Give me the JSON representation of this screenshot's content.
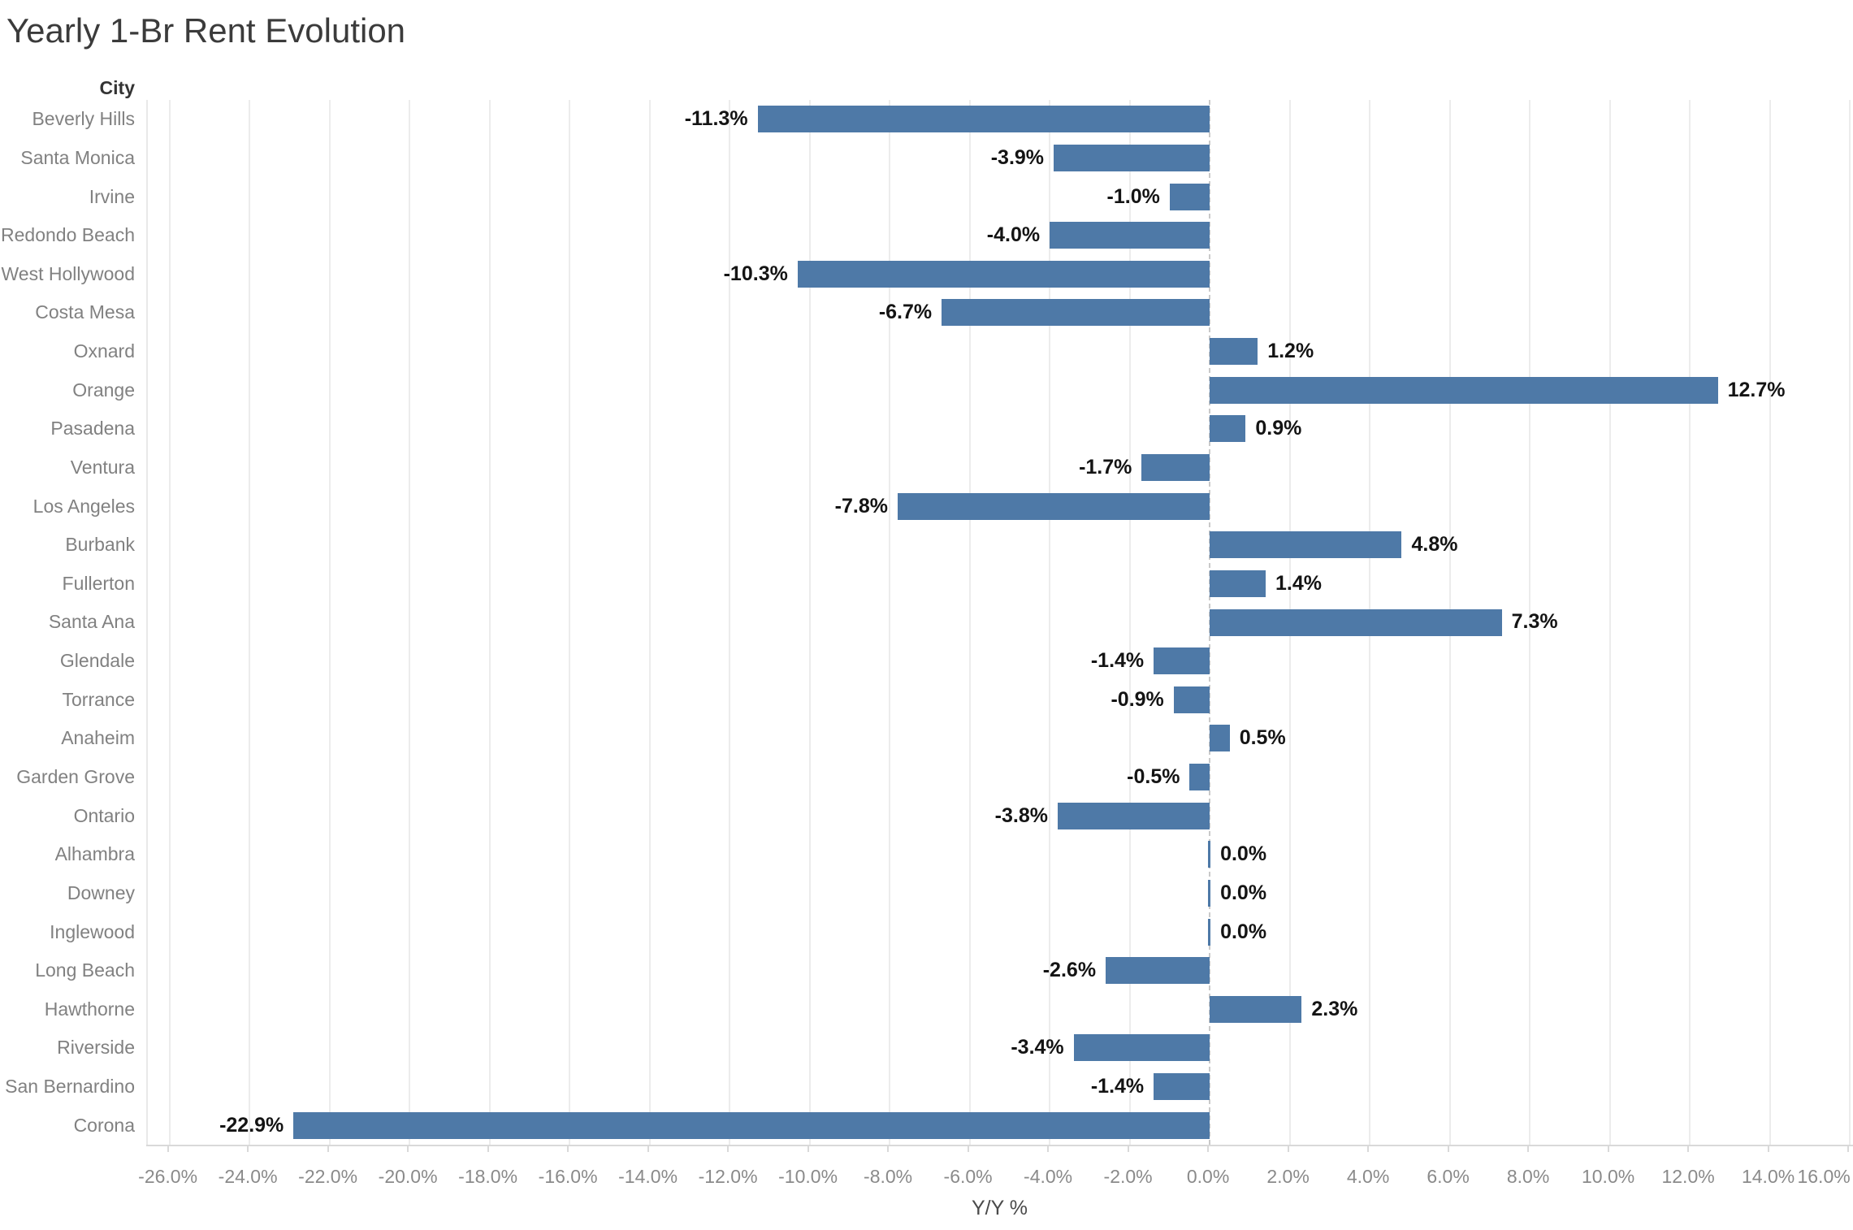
{
  "title": "Yearly 1-Br Rent Evolution",
  "chart_data": {
    "type": "bar",
    "orientation": "horizontal",
    "title": "Yearly 1-Br Rent Evolution",
    "ylabel": "City",
    "xlabel": "Y/Y %",
    "grid": true,
    "zero_line_style": "dashed",
    "bar_color": "#4e79a7",
    "xlim": [
      -26.54,
      16.12
    ],
    "x_ticks": [
      -26,
      -24,
      -22,
      -20,
      -18,
      -16,
      -14,
      -12,
      -10,
      -8,
      -6,
      -4,
      -2,
      0,
      2,
      4,
      6,
      8,
      10,
      12,
      14,
      16
    ],
    "x_tick_labels": [
      "-26.0%",
      "-24.0%",
      "-22.0%",
      "-20.0%",
      "-18.0%",
      "-16.0%",
      "-14.0%",
      "-12.0%",
      "-10.0%",
      "-8.0%",
      "-6.0%",
      "-4.0%",
      "-2.0%",
      "0.0%",
      "2.0%",
      "4.0%",
      "6.0%",
      "8.0%",
      "10.0%",
      "12.0%",
      "14.0%",
      "16.0%"
    ],
    "categories": [
      "Beverly Hills",
      "Santa Monica",
      "Irvine",
      "Redondo Beach",
      "West Hollywood",
      "Costa Mesa",
      "Oxnard",
      "Orange",
      "Pasadena",
      "Ventura",
      "Los Angeles",
      "Burbank",
      "Fullerton",
      "Santa Ana",
      "Glendale",
      "Torrance",
      "Anaheim",
      "Garden Grove",
      "Ontario",
      "Alhambra",
      "Downey",
      "Inglewood",
      "Long Beach",
      "Hawthorne",
      "Riverside",
      "San Bernardino",
      "Corona"
    ],
    "values": [
      -11.3,
      -3.9,
      -1.0,
      -4.0,
      -10.3,
      -6.7,
      1.2,
      12.7,
      0.9,
      -1.7,
      -7.8,
      4.8,
      1.4,
      7.3,
      -1.4,
      -0.9,
      0.5,
      -0.5,
      -3.8,
      0.0,
      0.0,
      0.0,
      -2.6,
      2.3,
      -3.4,
      -1.4,
      -22.9
    ],
    "value_labels": [
      "-11.3%",
      "-3.9%",
      "-1.0%",
      "-4.0%",
      "-10.3%",
      "-6.7%",
      "1.2%",
      "12.7%",
      "0.9%",
      "-1.7%",
      "-7.8%",
      "4.8%",
      "1.4%",
      "7.3%",
      "-1.4%",
      "-0.9%",
      "0.5%",
      "-0.5%",
      "-3.8%",
      "0.0%",
      "0.0%",
      "0.0%",
      "-2.6%",
      "2.3%",
      "-3.4%",
      "-1.4%",
      "-22.9%"
    ]
  }
}
